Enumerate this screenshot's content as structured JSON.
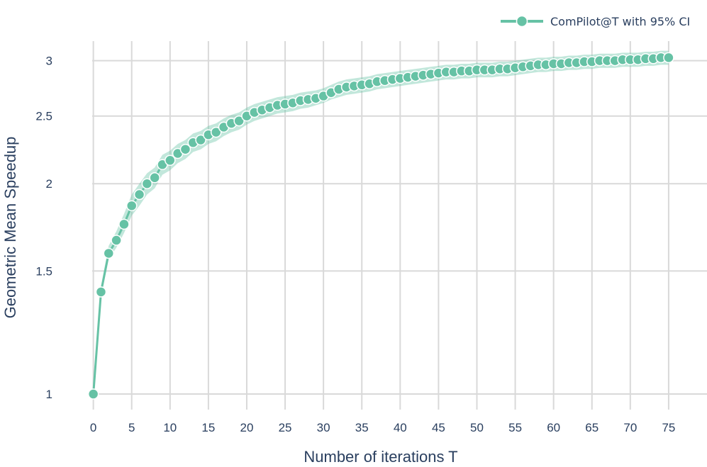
{
  "chart_data": {
    "type": "line",
    "xlabel": "Number of iterations T",
    "ylabel": "Geometric Mean Speedup",
    "x_scale": "linear",
    "y_scale": "log",
    "xlim": [
      -2,
      80
    ],
    "ylim": [
      0.95,
      3.2
    ],
    "x_ticks": [
      0,
      5,
      10,
      15,
      20,
      25,
      30,
      35,
      40,
      45,
      50,
      55,
      60,
      65,
      70,
      75
    ],
    "y_ticks": [
      1,
      1.5,
      2,
      2.5,
      3
    ],
    "y_tick_labels": [
      "1",
      "1.5",
      "2",
      "2.5",
      "3"
    ],
    "grid": true,
    "legend_position": "top-right",
    "colors": {
      "series": "#66c2a5",
      "band": "#66c2a5",
      "grid": "#d9d9d9"
    },
    "series": [
      {
        "name": "ComPilot@T with 95% CI",
        "x": [
          0,
          1,
          2,
          3,
          4,
          5,
          6,
          7,
          8,
          9,
          10,
          11,
          12,
          13,
          14,
          15,
          16,
          17,
          18,
          19,
          20,
          21,
          22,
          23,
          24,
          25,
          26,
          27,
          28,
          29,
          30,
          31,
          32,
          33,
          34,
          35,
          36,
          37,
          38,
          39,
          40,
          41,
          42,
          43,
          44,
          45,
          46,
          47,
          48,
          49,
          50,
          51,
          52,
          53,
          54,
          55,
          56,
          57,
          58,
          59,
          60,
          61,
          62,
          63,
          64,
          65,
          66,
          67,
          68,
          69,
          70,
          71,
          72,
          73,
          74,
          75
        ],
        "y": [
          1.0,
          1.4,
          1.59,
          1.66,
          1.75,
          1.86,
          1.93,
          2.0,
          2.04,
          2.13,
          2.16,
          2.21,
          2.24,
          2.29,
          2.31,
          2.35,
          2.37,
          2.41,
          2.44,
          2.46,
          2.5,
          2.53,
          2.55,
          2.57,
          2.59,
          2.6,
          2.61,
          2.63,
          2.64,
          2.65,
          2.67,
          2.7,
          2.73,
          2.75,
          2.76,
          2.77,
          2.78,
          2.8,
          2.81,
          2.82,
          2.83,
          2.84,
          2.85,
          2.86,
          2.87,
          2.88,
          2.89,
          2.89,
          2.9,
          2.9,
          2.91,
          2.91,
          2.91,
          2.92,
          2.92,
          2.93,
          2.94,
          2.95,
          2.96,
          2.96,
          2.97,
          2.97,
          2.98,
          2.98,
          2.99,
          2.99,
          3.0,
          3.0,
          3.0,
          3.01,
          3.01,
          3.01,
          3.02,
          3.02,
          3.03,
          3.03
        ],
        "ci_lower": [
          1.0,
          1.38,
          1.56,
          1.62,
          1.7,
          1.8,
          1.86,
          1.93,
          1.97,
          2.06,
          2.09,
          2.14,
          2.17,
          2.22,
          2.24,
          2.28,
          2.3,
          2.34,
          2.37,
          2.39,
          2.43,
          2.46,
          2.48,
          2.5,
          2.52,
          2.53,
          2.54,
          2.56,
          2.57,
          2.59,
          2.61,
          2.64,
          2.66,
          2.68,
          2.69,
          2.7,
          2.71,
          2.73,
          2.74,
          2.75,
          2.76,
          2.77,
          2.78,
          2.79,
          2.8,
          2.81,
          2.82,
          2.82,
          2.83,
          2.83,
          2.84,
          2.84,
          2.84,
          2.85,
          2.85,
          2.86,
          2.87,
          2.88,
          2.89,
          2.89,
          2.9,
          2.9,
          2.91,
          2.91,
          2.92,
          2.92,
          2.93,
          2.93,
          2.93,
          2.94,
          2.94,
          2.94,
          2.95,
          2.95,
          2.96,
          2.96
        ],
        "ci_upper": [
          1.0,
          1.43,
          1.63,
          1.71,
          1.81,
          1.93,
          2.0,
          2.07,
          2.11,
          2.2,
          2.23,
          2.28,
          2.31,
          2.36,
          2.38,
          2.42,
          2.44,
          2.48,
          2.51,
          2.53,
          2.57,
          2.6,
          2.62,
          2.64,
          2.66,
          2.67,
          2.68,
          2.7,
          2.71,
          2.72,
          2.74,
          2.77,
          2.8,
          2.82,
          2.83,
          2.84,
          2.85,
          2.87,
          2.88,
          2.89,
          2.9,
          2.91,
          2.92,
          2.93,
          2.94,
          2.95,
          2.96,
          2.96,
          2.97,
          2.97,
          2.98,
          2.98,
          2.98,
          2.99,
          2.99,
          3.0,
          3.01,
          3.02,
          3.03,
          3.03,
          3.04,
          3.04,
          3.05,
          3.05,
          3.06,
          3.06,
          3.07,
          3.07,
          3.07,
          3.08,
          3.08,
          3.08,
          3.09,
          3.09,
          3.1,
          3.1
        ]
      }
    ]
  }
}
